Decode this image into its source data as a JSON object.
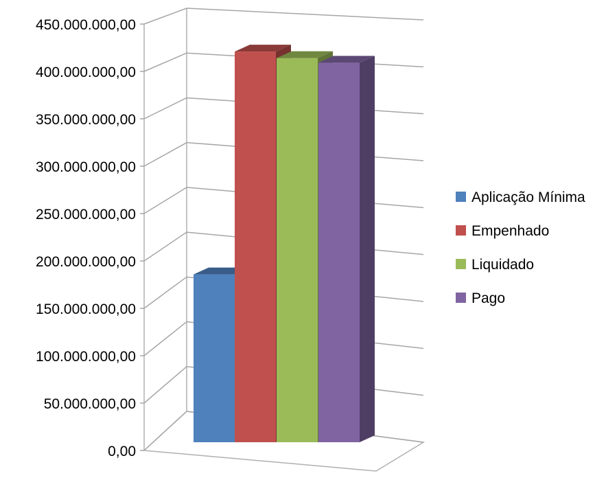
{
  "chart_data": {
    "type": "bar",
    "categories": [
      ""
    ],
    "series": [
      {
        "name": "Aplicação Mínima",
        "values": [
          180000000
        ],
        "color": "#4F81BD"
      },
      {
        "name": "Empenhado",
        "values": [
          419000000
        ],
        "color": "#C0504D"
      },
      {
        "name": "Liquidado",
        "values": [
          412000000
        ],
        "color": "#9BBB59"
      },
      {
        "name": "Pago",
        "values": [
          407000000
        ],
        "color": "#8064A2"
      }
    ],
    "title": "",
    "xlabel": "",
    "ylabel": "",
    "ylim": [
      0,
      450000000
    ],
    "yticks": [
      0,
      50000000,
      100000000,
      150000000,
      200000000,
      250000000,
      300000000,
      350000000,
      400000000,
      450000000
    ],
    "ytick_labels": [
      "0,00",
      "50.000.000,00",
      "100.000.000,00",
      "150.000.000,00",
      "200.000.000,00",
      "250.000.000,00",
      "300.000.000,00",
      "350.000.000,00",
      "400.000.000,00",
      "450.000.000,00"
    ],
    "grid": true,
    "legend": "right",
    "style": "3d-column"
  }
}
